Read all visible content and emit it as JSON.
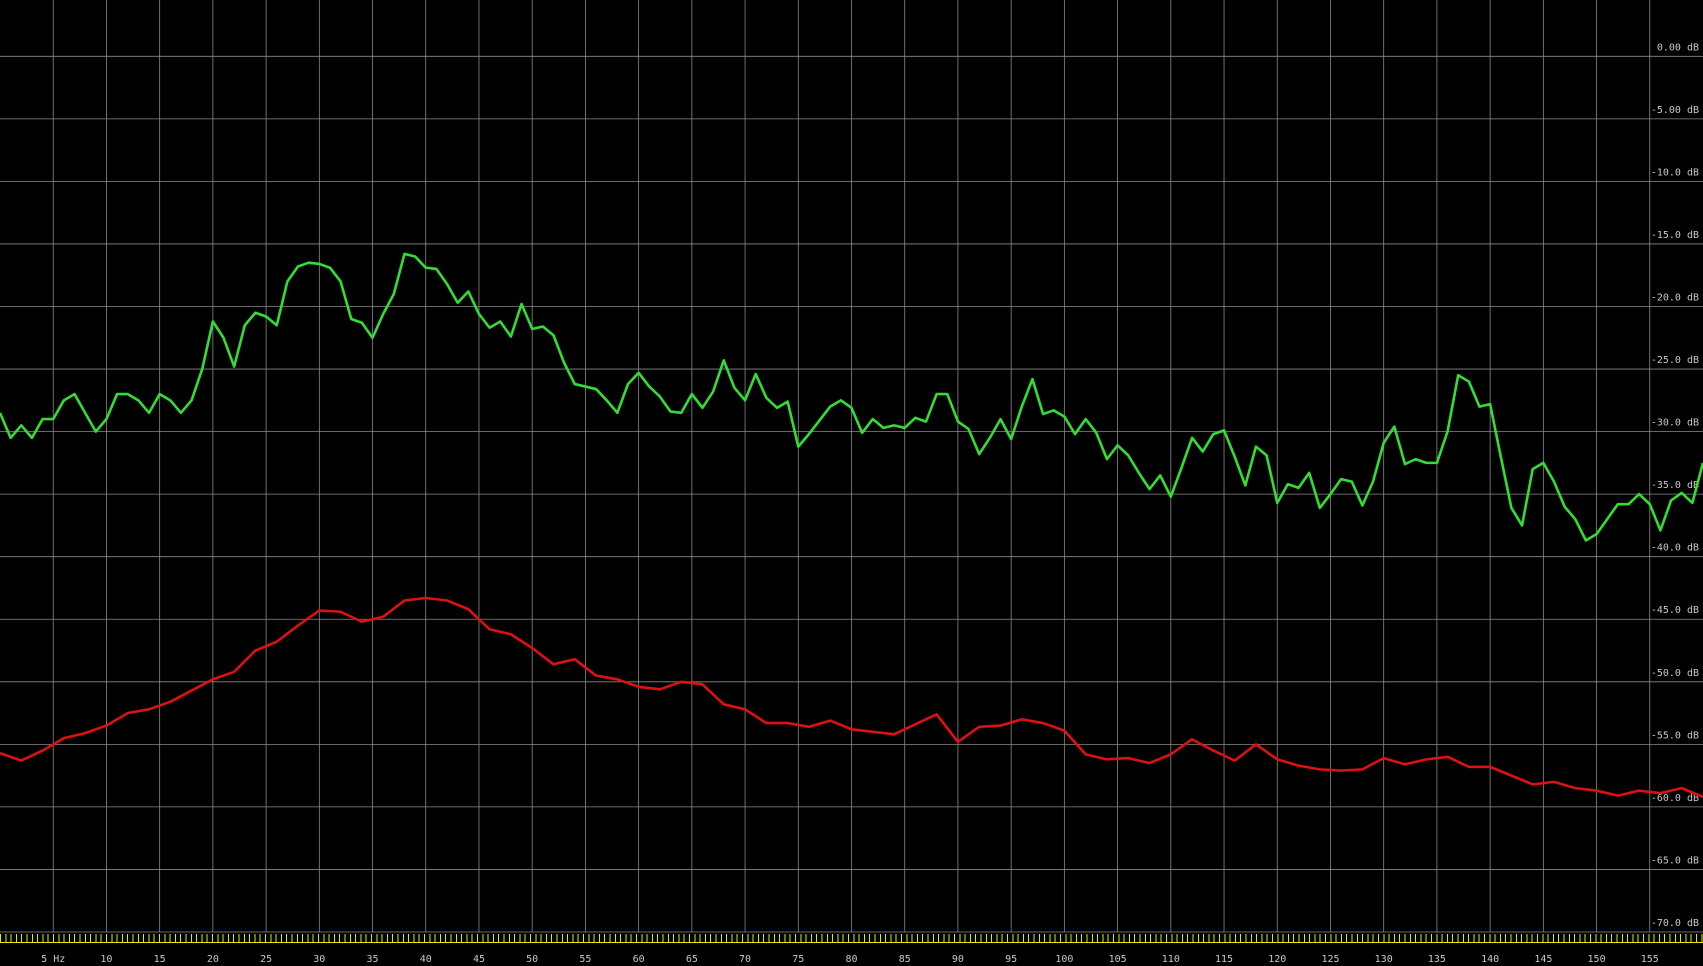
{
  "chart_data": {
    "type": "line",
    "xlim": [
      0,
      160
    ],
    "ylim": [
      -70,
      4.5
    ],
    "xticks": [
      {
        "value": 5,
        "label": "5 Hz"
      },
      10,
      15,
      20,
      25,
      30,
      35,
      40,
      45,
      50,
      55,
      60,
      65,
      70,
      75,
      80,
      85,
      90,
      95,
      100,
      105,
      110,
      115,
      120,
      125,
      130,
      135,
      140,
      145,
      150,
      155
    ],
    "yticks": [
      {
        "value": 0,
        "label": "0.00 dB"
      },
      {
        "value": -5,
        "label": "-5.00 dB"
      },
      {
        "value": -10,
        "label": "-10.0 dB"
      },
      {
        "value": -15,
        "label": "-15.0 dB"
      },
      {
        "value": -20,
        "label": "-20.0 dB"
      },
      {
        "value": -25,
        "label": "-25.0 dB"
      },
      {
        "value": -30,
        "label": "-30.0 dB"
      },
      {
        "value": -35,
        "label": "-35.0 dB"
      },
      {
        "value": -40,
        "label": "-40.0 dB"
      },
      {
        "value": -45,
        "label": "-45.0 dB"
      },
      {
        "value": -50,
        "label": "-50.0 dB"
      },
      {
        "value": -55,
        "label": "-55.0 dB"
      },
      {
        "value": -60,
        "label": "-60.0 dB"
      },
      {
        "value": -65,
        "label": "-65.0 dB"
      },
      {
        "value": -70,
        "label": "-70.0 dB"
      }
    ],
    "grid": true,
    "series": [
      {
        "color": "#33dd33",
        "x": [
          0,
          1,
          2,
          3,
          4,
          5,
          6,
          7,
          8,
          9,
          10,
          11,
          12,
          13,
          14,
          15,
          16,
          17,
          18,
          19,
          20,
          21,
          22,
          23,
          24,
          25,
          26,
          27,
          28,
          29,
          30,
          31,
          32,
          33,
          34,
          35,
          36,
          37,
          38,
          39,
          40,
          41,
          42,
          43,
          44,
          45,
          46,
          47,
          48,
          49,
          50,
          51,
          52,
          53,
          54,
          55,
          56,
          57,
          58,
          59,
          60,
          61,
          62,
          63,
          64,
          65,
          66,
          67,
          68,
          69,
          70,
          71,
          72,
          73,
          74,
          75,
          76,
          77,
          78,
          79,
          80,
          81,
          82,
          83,
          84,
          85,
          86,
          87,
          88,
          89,
          90,
          91,
          92,
          93,
          94,
          95,
          96,
          97,
          98,
          99,
          100,
          101,
          102,
          103,
          104,
          105,
          106,
          107,
          108,
          109,
          110,
          111,
          112,
          113,
          114,
          115,
          116,
          117,
          118,
          119,
          120,
          121,
          122,
          123,
          124,
          125,
          126,
          127,
          128,
          129,
          130,
          131,
          132,
          133,
          134,
          135,
          136,
          137,
          138,
          139,
          140,
          141,
          142,
          143,
          144,
          145,
          146,
          147,
          148,
          149,
          150,
          151,
          152,
          153,
          154,
          155,
          156,
          157,
          158,
          159,
          160
        ],
        "values": [
          -28.5,
          -30.5,
          -29.5,
          -30.5,
          -29,
          -29,
          -27.5,
          -27,
          -28.5,
          -30,
          -29,
          -27,
          -27,
          -27.5,
          -28.5,
          -27,
          -27.5,
          -28.5,
          -27.5,
          -25,
          -21.2,
          -22.5,
          -24.8,
          -21.5,
          -20.5,
          -20.8,
          -21.5,
          -18,
          -16.8,
          -16.5,
          -16.6,
          -16.9,
          -18,
          -21,
          -21.3,
          -22.5,
          -20.6,
          -19,
          -15.8,
          -16,
          -16.9,
          -17,
          -18.2,
          -19.7,
          -18.8,
          -20.6,
          -21.7,
          -21.2,
          -22.4,
          -19.8,
          -21.8,
          -21.6,
          -22.3,
          -24.5,
          -26.2,
          -26.4,
          -26.6,
          -27.5,
          -28.5,
          -26.2,
          -25.3,
          -26.4,
          -27.2,
          -28.4,
          -28.5,
          -27,
          -28.1,
          -26.8,
          -24.3,
          -26.5,
          -27.5,
          -25.4,
          -27.3,
          -28.1,
          -27.6,
          -31.2,
          -30.2,
          -29.1,
          -28,
          -27.5,
          -28.1,
          -30.1,
          -29,
          -29.7,
          -29.5,
          -29.7,
          -28.9,
          -29.2,
          -27,
          -27,
          -29.2,
          -29.8,
          -31.8,
          -30.5,
          -29,
          -30.6,
          -28,
          -25.8,
          -28.6,
          -28.3,
          -28.8,
          -30.2,
          -29,
          -30.1,
          -32.2,
          -31.1,
          -31.9,
          -33.3,
          -34.6,
          -33.5,
          -35.2,
          -32.9,
          -30.5,
          -31.6,
          -30.2,
          -29.9,
          -32,
          -34.3,
          -31.2,
          -31.9,
          -35.7,
          -34.2,
          -34.5,
          -33.3,
          -36.1,
          -35,
          -33.8,
          -34,
          -35.9,
          -34,
          -30.9,
          -29.6,
          -32.6,
          -32.2,
          -32.5,
          -32.5,
          -30,
          -25.5,
          -26,
          -28,
          -27.8,
          -32,
          -36.1,
          -37.5,
          -33,
          -32.5,
          -34,
          -36,
          -37,
          -38.7,
          -38.2,
          -37,
          -35.8,
          -35.8,
          -35,
          -35.8,
          -37.9,
          -35.5,
          -34.9,
          -35.7,
          -32.5
        ]
      },
      {
        "color": "#dd1111",
        "x": [
          0,
          2,
          4,
          6,
          8,
          10,
          12,
          14,
          16,
          18,
          20,
          22,
          24,
          26,
          28,
          30,
          32,
          34,
          36,
          38,
          40,
          42,
          44,
          46,
          48,
          50,
          52,
          54,
          56,
          58,
          60,
          62,
          64,
          66,
          68,
          70,
          72,
          74,
          76,
          78,
          80,
          82,
          84,
          86,
          88,
          90,
          92,
          94,
          96,
          98,
          100,
          102,
          104,
          106,
          108,
          110,
          112,
          114,
          116,
          118,
          120,
          122,
          124,
          126,
          128,
          130,
          132,
          134,
          136,
          138,
          140,
          142,
          144,
          146,
          148,
          150,
          152,
          154,
          156,
          158,
          160
        ],
        "values": [
          -55.7,
          -56.3,
          -55.5,
          -54.5,
          -54.1,
          -53.5,
          -52.5,
          -52.2,
          -51.6,
          -50.7,
          -49.8,
          -49.2,
          -47.5,
          -46.8,
          -45.5,
          -44.3,
          -44.4,
          -45.2,
          -44.8,
          -43.5,
          -43.3,
          -43.5,
          -44.2,
          -45.8,
          -46.2,
          -47.3,
          -48.6,
          -48.2,
          -49.5,
          -49.8,
          -50.4,
          -50.6,
          -50,
          -50.2,
          -51.8,
          -52.2,
          -53.3,
          -53.3,
          -53.6,
          -53.1,
          -53.8,
          -54,
          -54.2,
          -53.4,
          -52.6,
          -54.8,
          -53.6,
          -53.5,
          -53,
          -53.3,
          -53.9,
          -55.8,
          -56.2,
          -56.1,
          -56.5,
          -55.8,
          -54.6,
          -55.5,
          -56.3,
          -55,
          -56.2,
          -56.7,
          -57,
          -57.1,
          -57,
          -56.1,
          -56.6,
          -56.2,
          -56,
          -56.8,
          -56.8,
          -57.5,
          -58.2,
          -58,
          -58.5,
          -58.7,
          -59.1,
          -58.7,
          -58.9,
          -58.5,
          -59.2
        ]
      }
    ]
  }
}
